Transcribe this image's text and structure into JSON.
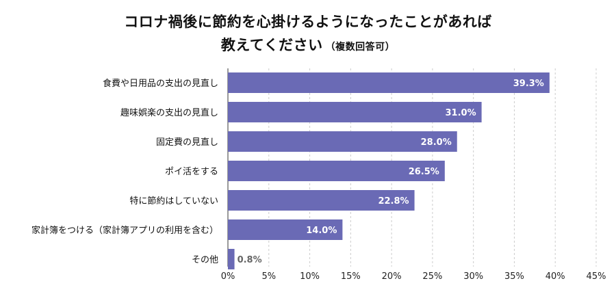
{
  "title": {
    "line1": "コロナ禍後に節約を心掛けるようになったことがあれば",
    "line2": "教えてください",
    "suffix": "（複数回答可）"
  },
  "colors": {
    "bar": "#6a6ab5",
    "grid": "#cccccc",
    "axis": "#333333",
    "label_inside": "#ffffff",
    "label_outside": "#666666"
  },
  "chart_data": {
    "type": "bar",
    "orientation": "horizontal",
    "categories": [
      "食費や日用品の支出の見直し",
      "趣味娯楽の支出の見直し",
      "固定費の見直し",
      "ポイ活をする",
      "特に節約はしていない",
      "家計簿をつける（家計簿アプリの利用を含む）",
      "その他"
    ],
    "values": [
      39.3,
      31.0,
      28.0,
      26.5,
      22.8,
      14.0,
      0.8
    ],
    "value_labels": [
      "39.3%",
      "31.0%",
      "28.0%",
      "26.5%",
      "22.8%",
      "14.0%",
      "0.8%"
    ],
    "xlim": [
      0,
      45
    ],
    "xticks": [
      0,
      5,
      10,
      15,
      20,
      25,
      30,
      35,
      40,
      45
    ],
    "xtick_labels": [
      "0%",
      "5%",
      "10%",
      "15%",
      "20%",
      "25%",
      "30%",
      "35%",
      "40%",
      "45%"
    ],
    "grid": true
  }
}
